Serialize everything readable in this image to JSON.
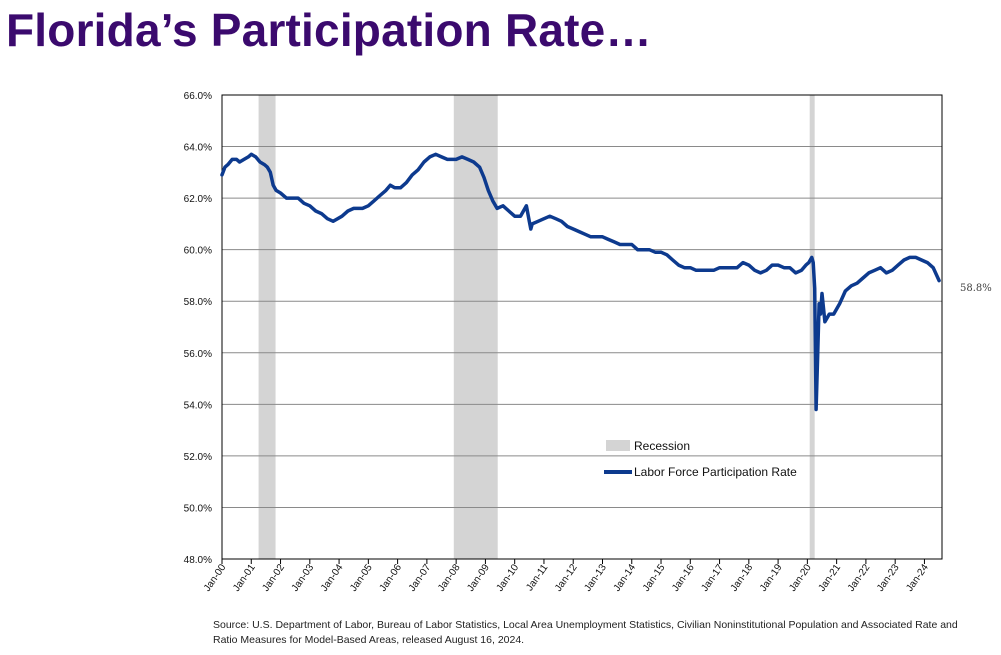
{
  "page": {
    "title": "Florida’s Participation Rate…"
  },
  "chart_data": {
    "type": "line",
    "title": "",
    "xlabel": "",
    "ylabel": "",
    "ylim": [
      48.0,
      66.0
    ],
    "y_ticks": [
      "48.0%",
      "50.0%",
      "52.0%",
      "54.0%",
      "56.0%",
      "58.0%",
      "60.0%",
      "62.0%",
      "64.0%",
      "66.0%"
    ],
    "y_tick_values": [
      48,
      50,
      52,
      54,
      56,
      58,
      60,
      62,
      64,
      66
    ],
    "x_range_years": [
      2000.0,
      2024.6
    ],
    "x_ticks": [
      "Jan-00",
      "Jan-01",
      "Jan-02",
      "Jan-03",
      "Jan-04",
      "Jan-05",
      "Jan-06",
      "Jan-07",
      "Jan-08",
      "Jan-09",
      "Jan-10",
      "Jan-11",
      "Jan-12",
      "Jan-13",
      "Jan-14",
      "Jan-15",
      "Jan-16",
      "Jan-17",
      "Jan-18",
      "Jan-19",
      "Jan-20",
      "Jan-21",
      "Jan-22",
      "Jan-23",
      "Jan-24"
    ],
    "grid": true,
    "legend": {
      "position": "lower-center",
      "entries": [
        "Recession",
        "Labor Force Participation Rate"
      ]
    },
    "recessions": [
      {
        "start": 2001.25,
        "end": 2001.83
      },
      {
        "start": 2007.92,
        "end": 2009.42
      },
      {
        "start": 2020.08,
        "end": 2020.25
      }
    ],
    "series": [
      {
        "name": "Labor Force Participation Rate",
        "color": "#0d3a8e",
        "x": [
          2000.0,
          2000.1,
          2000.2,
          2000.35,
          2000.5,
          2000.6,
          2000.75,
          2000.9,
          2001.0,
          2001.15,
          2001.3,
          2001.45,
          2001.55,
          2001.65,
          2001.75,
          2001.85,
          2002.0,
          2002.2,
          2002.4,
          2002.6,
          2002.8,
          2003.0,
          2003.2,
          2003.4,
          2003.6,
          2003.8,
          2003.95,
          2004.1,
          2004.3,
          2004.5,
          2004.8,
          2005.0,
          2005.2,
          2005.4,
          2005.6,
          2005.75,
          2005.9,
          2006.1,
          2006.3,
          2006.5,
          2006.7,
          2006.9,
          2007.1,
          2007.3,
          2007.5,
          2007.7,
          2007.9,
          2008.0,
          2008.2,
          2008.4,
          2008.6,
          2008.8,
          2008.95,
          2009.1,
          2009.25,
          2009.4,
          2009.6,
          2009.8,
          2010.0,
          2010.2,
          2010.4,
          2010.5,
          2010.55,
          2010.6,
          2010.8,
          2011.0,
          2011.2,
          2011.4,
          2011.6,
          2011.8,
          2012.0,
          2012.2,
          2012.4,
          2012.6,
          2012.8,
          2013.0,
          2013.2,
          2013.4,
          2013.6,
          2013.8,
          2014.0,
          2014.2,
          2014.4,
          2014.6,
          2014.8,
          2015.0,
          2015.2,
          2015.4,
          2015.6,
          2015.8,
          2016.0,
          2016.2,
          2016.4,
          2016.6,
          2016.8,
          2017.0,
          2017.2,
          2017.4,
          2017.6,
          2017.8,
          2018.0,
          2018.2,
          2018.4,
          2018.6,
          2018.8,
          2019.0,
          2019.2,
          2019.4,
          2019.6,
          2019.8,
          2019.95,
          2020.05,
          2020.1,
          2020.15,
          2020.2,
          2020.25,
          2020.3,
          2020.35,
          2020.4,
          2020.45,
          2020.5,
          2020.6,
          2020.75,
          2020.9,
          2021.1,
          2021.3,
          2021.5,
          2021.7,
          2021.9,
          2022.1,
          2022.3,
          2022.5,
          2022.7,
          2022.9,
          2023.1,
          2023.3,
          2023.5,
          2023.7,
          2023.9,
          2024.1,
          2024.3,
          2024.5
        ],
        "values": [
          62.9,
          63.2,
          63.3,
          63.5,
          63.5,
          63.4,
          63.5,
          63.6,
          63.7,
          63.6,
          63.4,
          63.3,
          63.2,
          63.0,
          62.5,
          62.3,
          62.2,
          62.0,
          62.0,
          62.0,
          61.8,
          61.7,
          61.5,
          61.4,
          61.2,
          61.1,
          61.2,
          61.3,
          61.5,
          61.6,
          61.6,
          61.7,
          61.9,
          62.1,
          62.3,
          62.5,
          62.4,
          62.4,
          62.6,
          62.9,
          63.1,
          63.4,
          63.6,
          63.7,
          63.6,
          63.5,
          63.5,
          63.5,
          63.6,
          63.5,
          63.4,
          63.2,
          62.8,
          62.3,
          61.9,
          61.6,
          61.7,
          61.5,
          61.3,
          61.3,
          61.7,
          61.1,
          60.8,
          61.0,
          61.1,
          61.2,
          61.3,
          61.2,
          61.1,
          60.9,
          60.8,
          60.7,
          60.6,
          60.5,
          60.5,
          60.5,
          60.4,
          60.3,
          60.2,
          60.2,
          60.2,
          60.0,
          60.0,
          60.0,
          59.9,
          59.9,
          59.8,
          59.6,
          59.4,
          59.3,
          59.3,
          59.2,
          59.2,
          59.2,
          59.2,
          59.3,
          59.3,
          59.3,
          59.3,
          59.5,
          59.4,
          59.2,
          59.1,
          59.2,
          59.4,
          59.4,
          59.3,
          59.3,
          59.1,
          59.2,
          59.4,
          59.5,
          59.6,
          59.7,
          59.5,
          58.5,
          53.8,
          55.8,
          57.9,
          57.5,
          58.3,
          57.2,
          57.5,
          57.5,
          57.9,
          58.4,
          58.6,
          58.7,
          58.9,
          59.1,
          59.2,
          59.3,
          59.1,
          59.2,
          59.4,
          59.6,
          59.7,
          59.7,
          59.6,
          59.5,
          59.3,
          58.8
        ]
      }
    ],
    "end_label": "58.8%"
  },
  "source": "Source: U.S. Department of Labor, Bureau of Labor Statistics, Local Area Unemployment Statistics, Civilian Noninstitutional Population and Associated Rate and Ratio Measures for Model-Based Areas, released August 16, 2024."
}
